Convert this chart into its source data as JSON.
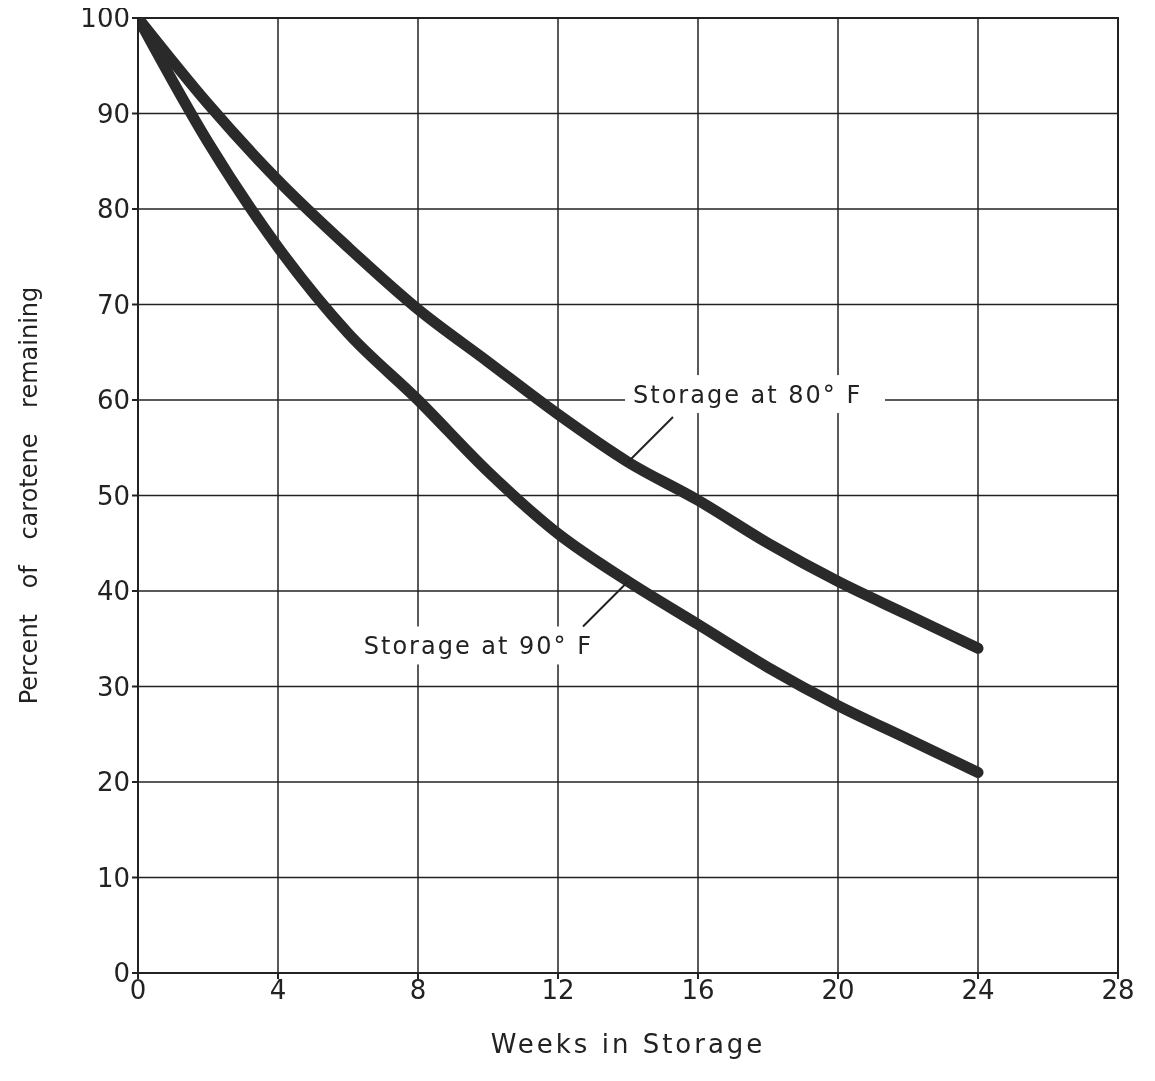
{
  "chart_data": {
    "type": "line",
    "xlabel": "Weeks in Storage",
    "ylabel": "Percent of carotene remaining",
    "x": [
      0,
      2,
      4,
      6,
      8,
      10,
      12,
      14,
      16,
      18,
      20,
      22,
      24
    ],
    "series": [
      {
        "color": "#2a2a2a",
        "values": [
          100,
          91,
          83,
          76,
          69.5,
          64,
          58.5,
          53.5,
          49.5,
          45,
          41,
          37.5,
          34
        ]
      },
      {
        "color": "#2a2a2a",
        "values": [
          100,
          87,
          76,
          67,
          60,
          52.5,
          46,
          41,
          36.5,
          32,
          28,
          24.5,
          21
        ]
      }
    ],
    "xlim": [
      0,
      28
    ],
    "xticks": [
      0,
      4,
      8,
      12,
      16,
      20,
      24,
      28
    ],
    "ylim": [
      0,
      100
    ],
    "yticks": [
      0,
      10,
      20,
      30,
      40,
      50,
      60,
      70,
      80,
      90,
      100
    ],
    "grid": true,
    "marker": "none",
    "line_style": "solid",
    "annotations": [
      {
        "text": "Storage at 80° F",
        "x": 14,
        "y": 53.5
      },
      {
        "text": "Storage at 90° F",
        "x": 14,
        "y": 41
      }
    ]
  }
}
